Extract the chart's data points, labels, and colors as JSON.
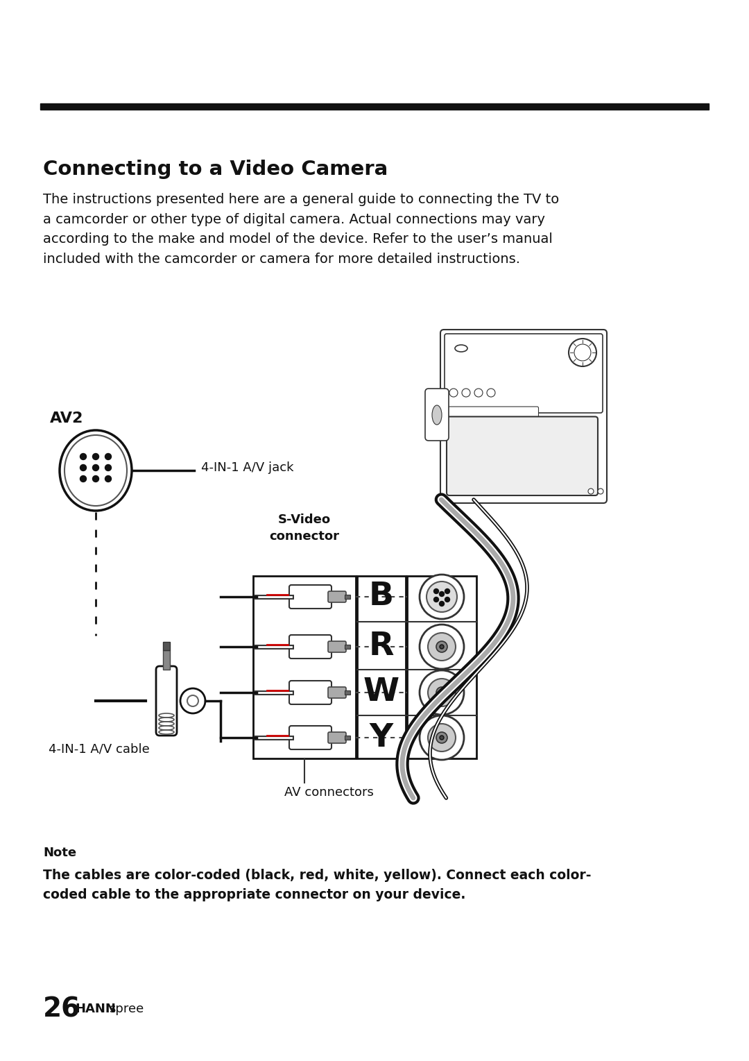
{
  "bg_color": "#ffffff",
  "title": "Connecting to a Video Camera",
  "body_text": "The instructions presented here are a general guide to connecting the TV to\na camcorder or other type of digital camera. Actual connections may vary\naccording to the make and model of the device. Refer to the user’s manual\nincluded with the camcorder or camera for more detailed instructions.",
  "note_label": "Note",
  "note_text": "The cables are color-coded (black, red, white, yellow). Connect each color-\ncoded cable to the appropriate connector on your device.",
  "footer_number": "26",
  "footer_brand_upper": "HANN",
  "footer_brand_lower": "spree",
  "av2_label": "AV2",
  "jack_label": "4-IN-1 A/V jack",
  "cable_label": "4-IN-1 A/V cable",
  "svideo_label": "S-Video\nconnector",
  "av_connectors_label": "AV connectors",
  "brwy_letters": [
    "B",
    "R",
    "W",
    "Y"
  ]
}
